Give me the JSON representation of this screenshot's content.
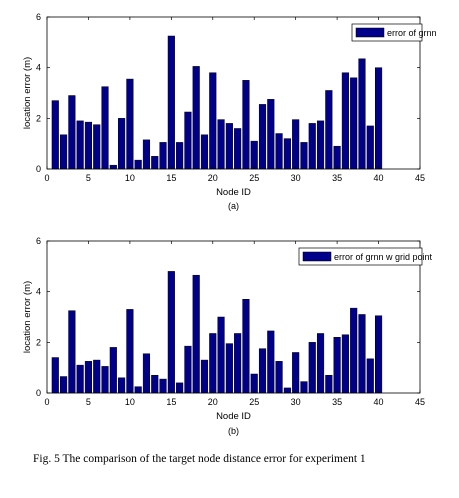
{
  "chart_data": [
    {
      "type": "bar",
      "subcaption": "(a)",
      "xlabel": "Node ID",
      "ylabel": "location error (m)",
      "xlim": [
        0,
        45
      ],
      "ylim": [
        0,
        6
      ],
      "xticks": [
        0,
        5,
        10,
        15,
        20,
        25,
        30,
        35,
        40,
        45
      ],
      "yticks": [
        0,
        2,
        4,
        6
      ],
      "legend": {
        "label": "error of grnn",
        "placement": "top-right"
      },
      "bar_color": "#00008b",
      "x": [
        1,
        2,
        3,
        4,
        5,
        6,
        7,
        8,
        9,
        10,
        11,
        12,
        13,
        14,
        15,
        16,
        17,
        18,
        19,
        20,
        21,
        22,
        23,
        24,
        25,
        26,
        27,
        28,
        29,
        30,
        31,
        32,
        33,
        34,
        35,
        36,
        37,
        38,
        39,
        40
      ],
      "values": [
        2.7,
        1.35,
        2.9,
        1.9,
        1.85,
        1.75,
        3.25,
        0.15,
        2.0,
        3.55,
        0.35,
        1.15,
        0.5,
        1.05,
        5.25,
        1.05,
        2.25,
        4.05,
        1.35,
        3.8,
        1.95,
        1.8,
        1.6,
        3.5,
        1.1,
        2.55,
        2.75,
        1.4,
        1.2,
        1.95,
        1.05,
        1.8,
        1.9,
        3.1,
        0.9,
        3.8,
        3.6,
        4.35,
        1.7,
        4.0
      ]
    },
    {
      "type": "bar",
      "subcaption": "(b)",
      "xlabel": "Node ID",
      "ylabel": "location error (m)",
      "xlim": [
        0,
        45
      ],
      "ylim": [
        0,
        6
      ],
      "xticks": [
        0,
        5,
        10,
        15,
        20,
        25,
        30,
        35,
        40,
        45
      ],
      "yticks": [
        0,
        2,
        4,
        6
      ],
      "legend": {
        "label": "error of grnn w grid point",
        "placement": "top-right"
      },
      "bar_color": "#00008b",
      "x": [
        1,
        2,
        3,
        4,
        5,
        6,
        7,
        8,
        9,
        10,
        11,
        12,
        13,
        14,
        15,
        16,
        17,
        18,
        19,
        20,
        21,
        22,
        23,
        24,
        25,
        26,
        27,
        28,
        29,
        30,
        31,
        32,
        33,
        34,
        35,
        36,
        37,
        38,
        39,
        40
      ],
      "values": [
        1.4,
        0.65,
        3.25,
        1.1,
        1.25,
        1.3,
        1.05,
        1.8,
        0.6,
        3.3,
        0.25,
        1.55,
        0.7,
        0.55,
        4.8,
        0.4,
        1.85,
        4.65,
        1.3,
        2.35,
        3.0,
        1.95,
        2.35,
        3.7,
        0.75,
        1.75,
        2.45,
        1.25,
        0.2,
        1.6,
        0.45,
        2.0,
        2.35,
        0.7,
        2.2,
        2.3,
        3.35,
        3.1,
        1.35,
        3.05
      ]
    }
  ],
  "caption": "Fig. 5 The comparison of the target node distance error for experiment 1"
}
